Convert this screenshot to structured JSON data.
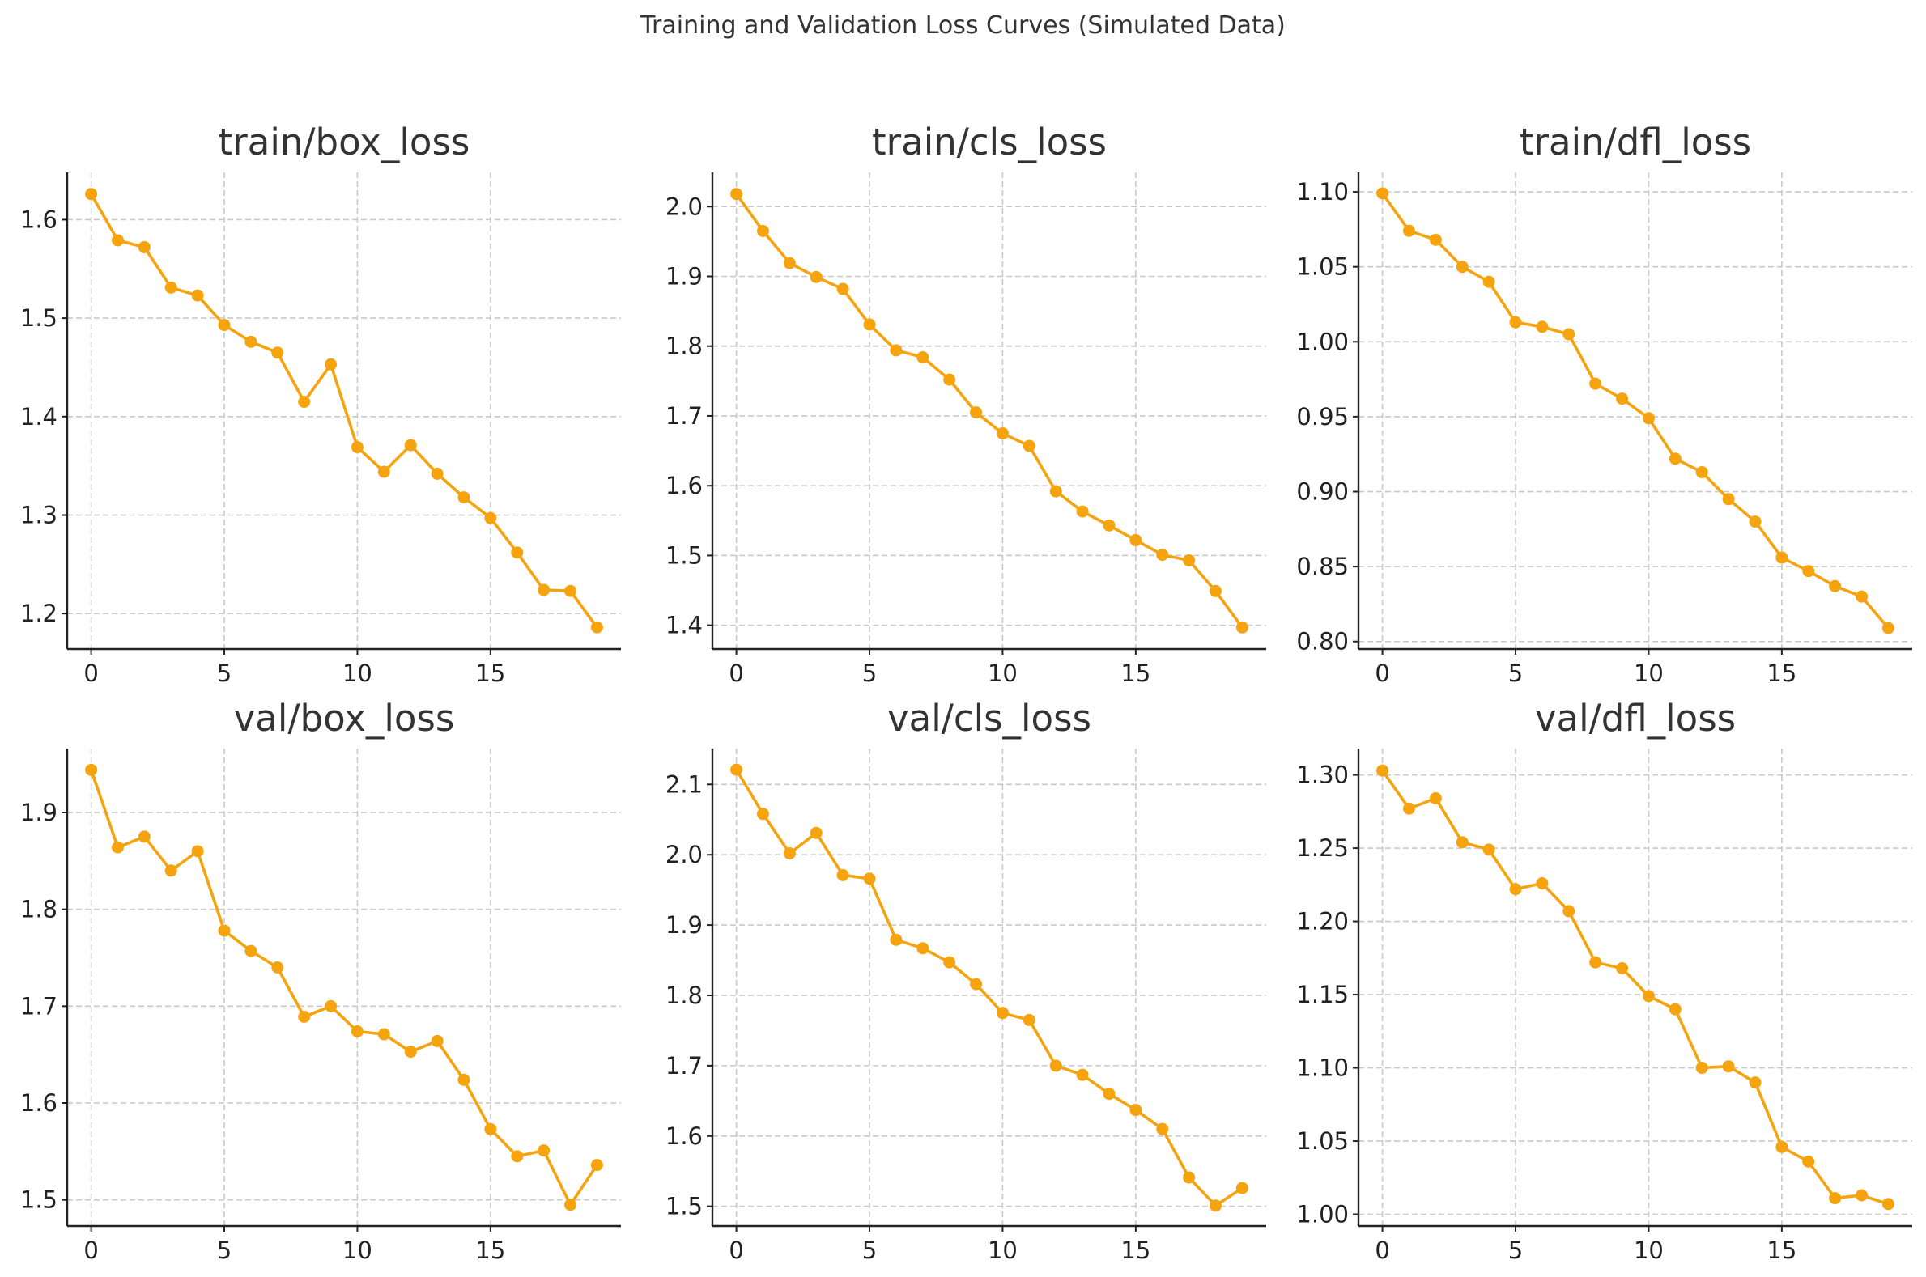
{
  "figure_title": "Training and Validation Loss Curves (Simulated Data)",
  "colors": {
    "series": "#f5a30f",
    "grid": "#c9c9c9",
    "axis": "#222222"
  },
  "chart_data": [
    {
      "type": "line",
      "title": "train/box_loss",
      "x": [
        0,
        1,
        2,
        3,
        4,
        5,
        6,
        7,
        8,
        9,
        10,
        11,
        12,
        13,
        14,
        15,
        16,
        17,
        18,
        19
      ],
      "series": [
        {
          "values": [
            1.626,
            1.579,
            1.572,
            1.531,
            1.523,
            1.493,
            1.476,
            1.465,
            1.415,
            1.453,
            1.369,
            1.344,
            1.371,
            1.342,
            1.318,
            1.297,
            1.262,
            1.224,
            1.223,
            1.186
          ]
        }
      ],
      "xlim": [
        -0.9,
        19.9
      ],
      "ylim": [
        1.164,
        1.648
      ],
      "xticks": [
        0,
        5,
        10,
        15
      ],
      "yticks": [
        1.2,
        1.3,
        1.4,
        1.5,
        1.6
      ],
      "ytick_labels": [
        "1.2",
        "1.3",
        "1.4",
        "1.5",
        "1.6"
      ],
      "grid": true,
      "xlabel": "",
      "ylabel": ""
    },
    {
      "type": "line",
      "title": "train/cls_loss",
      "x": [
        0,
        1,
        2,
        3,
        4,
        5,
        6,
        7,
        8,
        9,
        10,
        11,
        12,
        13,
        14,
        15,
        16,
        17,
        18,
        19
      ],
      "series": [
        {
          "values": [
            2.018,
            1.965,
            1.919,
            1.899,
            1.882,
            1.831,
            1.794,
            1.784,
            1.752,
            1.705,
            1.675,
            1.657,
            1.592,
            1.563,
            1.543,
            1.522,
            1.501,
            1.493,
            1.449,
            1.397
          ]
        }
      ],
      "xlim": [
        -0.9,
        19.9
      ],
      "ylim": [
        1.366,
        2.049
      ],
      "xticks": [
        0,
        5,
        10,
        15
      ],
      "yticks": [
        1.4,
        1.5,
        1.6,
        1.7,
        1.8,
        1.9,
        2.0
      ],
      "ytick_labels": [
        "1.4",
        "1.5",
        "1.6",
        "1.7",
        "1.8",
        "1.9",
        "2.0"
      ],
      "grid": true,
      "xlabel": "",
      "ylabel": ""
    },
    {
      "type": "line",
      "title": "train/dfl_loss",
      "x": [
        0,
        1,
        2,
        3,
        4,
        5,
        6,
        7,
        8,
        9,
        10,
        11,
        12,
        13,
        14,
        15,
        16,
        17,
        18,
        19
      ],
      "series": [
        {
          "values": [
            1.099,
            1.074,
            1.068,
            1.05,
            1.04,
            1.013,
            1.01,
            1.005,
            0.972,
            0.962,
            0.949,
            0.922,
            0.913,
            0.895,
            0.88,
            0.856,
            0.847,
            0.837,
            0.83,
            0.809
          ]
        }
      ],
      "xlim": [
        -0.9,
        19.9
      ],
      "ylim": [
        0.795,
        1.113
      ],
      "xticks": [
        0,
        5,
        10,
        15
      ],
      "yticks": [
        0.8,
        0.85,
        0.9,
        0.95,
        1.0,
        1.05,
        1.1
      ],
      "ytick_labels": [
        "0.80",
        "0.85",
        "0.90",
        "0.95",
        "1.00",
        "1.05",
        "1.10"
      ],
      "grid": true,
      "xlabel": "",
      "ylabel": ""
    },
    {
      "type": "line",
      "title": "val/box_loss",
      "x": [
        0,
        1,
        2,
        3,
        4,
        5,
        6,
        7,
        8,
        9,
        10,
        11,
        12,
        13,
        14,
        15,
        16,
        17,
        18,
        19
      ],
      "series": [
        {
          "values": [
            1.944,
            1.864,
            1.875,
            1.84,
            1.86,
            1.778,
            1.757,
            1.74,
            1.689,
            1.7,
            1.674,
            1.671,
            1.653,
            1.664,
            1.624,
            1.573,
            1.545,
            1.551,
            1.495,
            1.536
          ]
        }
      ],
      "xlim": [
        -0.9,
        19.9
      ],
      "ylim": [
        1.473,
        1.966
      ],
      "xticks": [
        0,
        5,
        10,
        15
      ],
      "yticks": [
        1.5,
        1.6,
        1.7,
        1.8,
        1.9
      ],
      "ytick_labels": [
        "1.5",
        "1.6",
        "1.7",
        "1.8",
        "1.9"
      ],
      "grid": true,
      "xlabel": "",
      "ylabel": ""
    },
    {
      "type": "line",
      "title": "val/cls_loss",
      "x": [
        0,
        1,
        2,
        3,
        4,
        5,
        6,
        7,
        8,
        9,
        10,
        11,
        12,
        13,
        14,
        15,
        16,
        17,
        18,
        19
      ],
      "series": [
        {
          "values": [
            2.121,
            2.058,
            2.002,
            2.031,
            1.971,
            1.966,
            1.879,
            1.867,
            1.847,
            1.816,
            1.775,
            1.765,
            1.7,
            1.687,
            1.66,
            1.637,
            1.61,
            1.541,
            1.501,
            1.526
          ]
        }
      ],
      "xlim": [
        -0.9,
        19.9
      ],
      "ylim": [
        1.472,
        2.151
      ],
      "xticks": [
        0,
        5,
        10,
        15
      ],
      "yticks": [
        1.5,
        1.6,
        1.7,
        1.8,
        1.9,
        2.0,
        2.1
      ],
      "ytick_labels": [
        "1.5",
        "1.6",
        "1.7",
        "1.8",
        "1.9",
        "2.0",
        "2.1"
      ],
      "grid": true,
      "xlabel": "",
      "ylabel": ""
    },
    {
      "type": "line",
      "title": "val/dfl_loss",
      "x": [
        0,
        1,
        2,
        3,
        4,
        5,
        6,
        7,
        8,
        9,
        10,
        11,
        12,
        13,
        14,
        15,
        16,
        17,
        18,
        19
      ],
      "series": [
        {
          "values": [
            1.303,
            1.277,
            1.284,
            1.254,
            1.249,
            1.222,
            1.226,
            1.207,
            1.172,
            1.168,
            1.149,
            1.14,
            1.1,
            1.101,
            1.09,
            1.046,
            1.036,
            1.011,
            1.013,
            1.007
          ]
        }
      ],
      "xlim": [
        -0.9,
        19.9
      ],
      "ylim": [
        0.992,
        1.318
      ],
      "xticks": [
        0,
        5,
        10,
        15
      ],
      "yticks": [
        1.0,
        1.05,
        1.1,
        1.15,
        1.2,
        1.25,
        1.3
      ],
      "ytick_labels": [
        "1.00",
        "1.05",
        "1.10",
        "1.15",
        "1.20",
        "1.25",
        "1.30"
      ],
      "grid": true,
      "xlabel": "",
      "ylabel": ""
    }
  ]
}
